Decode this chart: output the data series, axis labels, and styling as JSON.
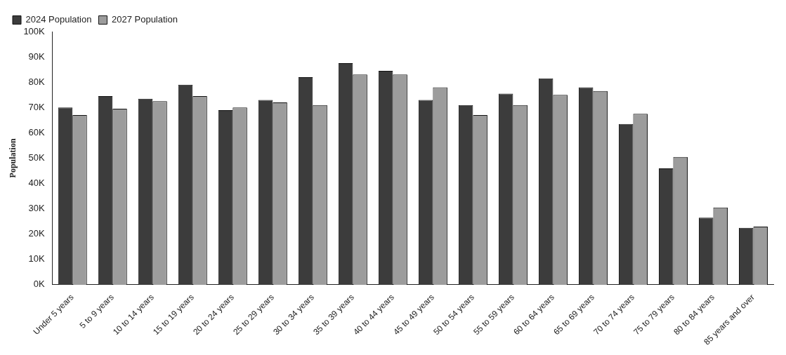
{
  "chart_data": {
    "type": "bar",
    "ylabel": "Population",
    "legend": "top left",
    "grid": false,
    "categories": [
      "Under 5 years",
      "5 to 9 years",
      "10 to 14 years",
      "15 to 19 years",
      "20 to 24 years",
      "25 to 29 years",
      "30 to 34 years",
      "35 to 39 years",
      "40 to 44 years",
      "45 to 49 years",
      "50 to 54 years",
      "55 to 59 years",
      "60 to 64 years",
      "65 to 69 years",
      "70 to 74 years",
      "75 to 79 years",
      "80 to 84 years",
      "85 years and over"
    ],
    "series": [
      {
        "name": "2024 Population",
        "color": "#3c3c3c",
        "values": [
          70000,
          74500,
          73500,
          79000,
          69000,
          73000,
          82000,
          87500,
          84500,
          73000,
          71000,
          75500,
          81500,
          78000,
          63500,
          46000,
          26500,
          22500
        ]
      },
      {
        "name": "2027 Population",
        "color": "#9c9c9c",
        "values": [
          67000,
          69500,
          72500,
          74500,
          70000,
          72000,
          71000,
          83000,
          83000,
          78000,
          67000,
          71000,
          75000,
          76500,
          67500,
          50500,
          30500,
          23000
        ]
      }
    ],
    "ylim": [
      0,
      100000
    ],
    "yticks": [
      {
        "value": 0,
        "label": "0K"
      },
      {
        "value": 10000,
        "label": "10K"
      },
      {
        "value": 20000,
        "label": "20K"
      },
      {
        "value": 30000,
        "label": "30K"
      },
      {
        "value": 40000,
        "label": "40K"
      },
      {
        "value": 50000,
        "label": "50K"
      },
      {
        "value": 60000,
        "label": "60K"
      },
      {
        "value": 70000,
        "label": "70K"
      },
      {
        "value": 80000,
        "label": "80K"
      },
      {
        "value": 90000,
        "label": "90K"
      },
      {
        "value": 100000,
        "label": "100K"
      }
    ]
  }
}
